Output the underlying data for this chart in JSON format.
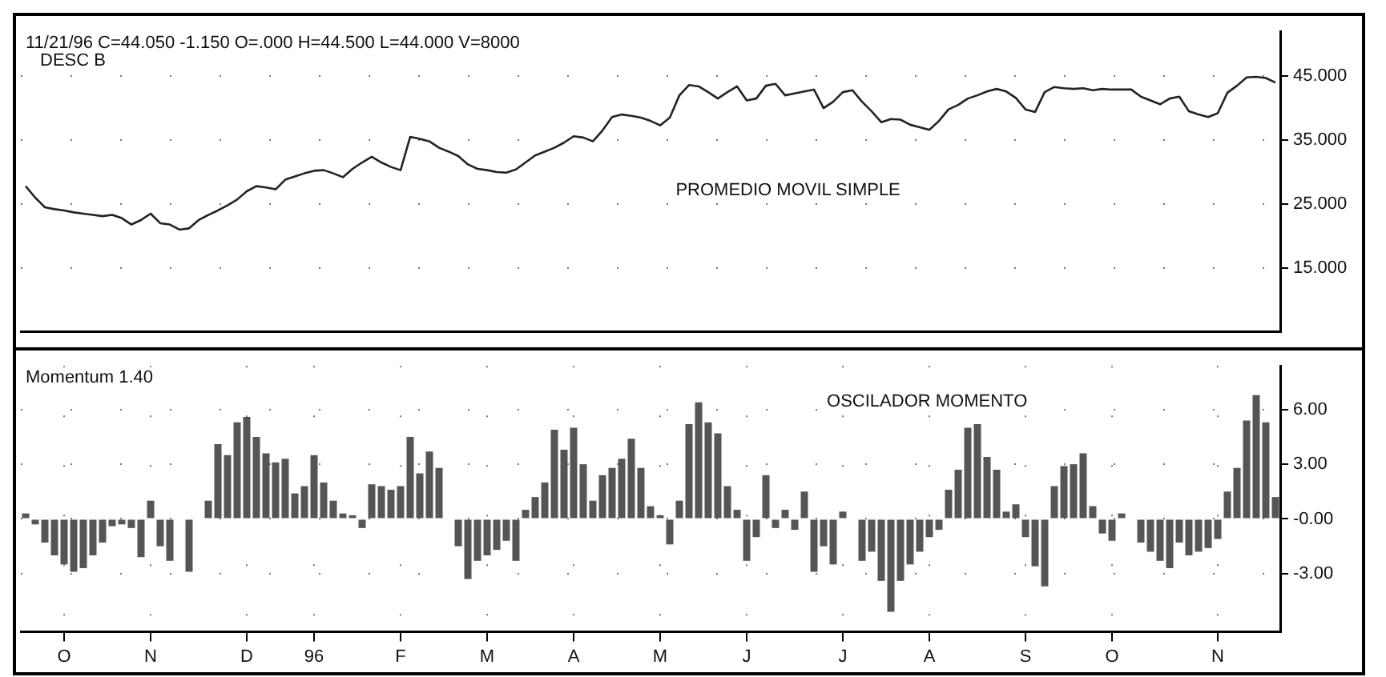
{
  "chart_data": [
    {
      "type": "line",
      "title": "11/21/96 C=44.050 -1.150 O=.000 H=44.500 L=44.000 V=8000",
      "subtitle": "DESC B",
      "values": [
        27.8,
        26,
        24.5,
        24.2,
        24,
        23.7,
        23.5,
        23.3,
        23.1,
        23.3,
        22.8,
        21.8,
        22.5,
        23.5,
        22,
        21.8,
        21,
        21.2,
        22.5,
        23.3,
        24,
        24.8,
        25.7,
        27,
        27.8,
        27.6,
        27.3,
        28.8,
        29.3,
        29.8,
        30.2,
        30.3,
        29.8,
        29.2,
        30.5,
        31.5,
        32.4,
        31.5,
        30.8,
        30.3,
        35.5,
        35.2,
        34.8,
        33.8,
        33.2,
        32.5,
        31.2,
        30.5,
        30.3,
        30,
        29.9,
        30.4,
        31.5,
        32.6,
        33.2,
        33.8,
        34.6,
        35.6,
        35.4,
        34.8,
        36.5,
        38.6,
        39,
        38.8,
        38.5,
        38,
        37.3,
        38.5,
        42,
        43.6,
        43.4,
        42.5,
        41.5,
        42.5,
        43.4,
        41.2,
        41.5,
        43.5,
        43.8,
        42,
        42.3,
        42.6,
        42.9,
        40,
        41,
        42.5,
        42.8,
        41,
        39.5,
        37.8,
        38.3,
        38.2,
        37.4,
        37,
        36.6,
        38,
        39.8,
        40.5,
        41.5,
        42,
        42.6,
        43,
        42.6,
        41.6,
        39.8,
        39.4,
        42.5,
        43.3,
        43.1,
        43,
        43.1,
        42.8,
        43,
        42.9,
        42.9,
        42.9,
        41.8,
        41.2,
        40.6,
        41.5,
        41.8,
        39.5,
        39,
        38.6,
        39.2,
        42.4,
        43.5,
        44.8,
        44.9,
        44.7,
        44
      ],
      "color": "#222222",
      "marker": "none",
      "ylim": [
        5,
        52
      ],
      "yticks": [
        {
          "value": 15,
          "label": "15.000"
        },
        {
          "value": 25,
          "label": "25.000"
        },
        {
          "value": 35,
          "label": "35.000"
        },
        {
          "value": 45,
          "label": "45.000"
        }
      ],
      "grid": true,
      "tick_labels": "y",
      "annotations": [
        "PROMEDIO MOVIL SIMPLE"
      ]
    },
    {
      "type": "bar",
      "title": "Momentum 1.40",
      "categories": [
        null,
        null,
        null,
        null,
        "O",
        null,
        null,
        null,
        null,
        null,
        null,
        null,
        null,
        "N",
        null,
        null,
        null,
        null,
        null,
        null,
        null,
        null,
        null,
        "D",
        null,
        null,
        null,
        null,
        null,
        null,
        "96",
        null,
        null,
        null,
        null,
        null,
        null,
        null,
        null,
        "F",
        null,
        null,
        null,
        null,
        null,
        null,
        null,
        null,
        "M",
        null,
        null,
        null,
        null,
        null,
        null,
        null,
        null,
        "A",
        null,
        null,
        null,
        null,
        null,
        null,
        null,
        null,
        "M",
        null,
        null,
        null,
        null,
        null,
        null,
        null,
        null,
        "J",
        null,
        null,
        null,
        null,
        null,
        null,
        null,
        null,
        null,
        "J",
        null,
        null,
        null,
        null,
        null,
        null,
        null,
        null,
        "A",
        null,
        null,
        null,
        null,
        null,
        null,
        null,
        null,
        null,
        "S",
        null,
        null,
        null,
        null,
        null,
        null,
        null,
        null,
        "O",
        null,
        null,
        null,
        null,
        null,
        null,
        null,
        null,
        null,
        null,
        "N",
        null,
        null,
        null,
        null,
        null,
        null
      ],
      "values": [
        0.3,
        -0.3,
        -1.3,
        -2,
        -2.5,
        -2.9,
        -2.7,
        -2,
        -1.3,
        -0.4,
        -0.3,
        -0.5,
        -2.1,
        1,
        -1.5,
        -2.3,
        null,
        -2.9,
        null,
        1,
        4.1,
        3.5,
        5.3,
        5.6,
        4.5,
        3.6,
        3.1,
        3.3,
        1.4,
        1.8,
        3.5,
        2,
        1,
        0.3,
        0.2,
        -0.5,
        1.9,
        1.8,
        1.6,
        1.8,
        4.5,
        2.5,
        3.7,
        2.8,
        null,
        -1.5,
        -3.3,
        -2.3,
        -2,
        -1.7,
        -1.2,
        -2.3,
        0.5,
        1.2,
        2,
        4.9,
        3.8,
        5,
        3,
        1,
        2.4,
        2.8,
        3.3,
        4.4,
        2.8,
        0.7,
        0.2,
        -1.4,
        1,
        5.2,
        6.4,
        5.3,
        4.7,
        1.8,
        0.5,
        -2.3,
        -1,
        2.4,
        -0.5,
        0.5,
        -0.6,
        1.5,
        -2.9,
        -1.5,
        -2.5,
        0.4,
        null,
        -2.3,
        -1.8,
        -3.4,
        -5.1,
        -3.4,
        -2.5,
        -1.8,
        -1,
        -0.6,
        1.6,
        2.7,
        5,
        5.2,
        3.4,
        2.7,
        0.4,
        0.8,
        -1,
        -2.6,
        -3.7,
        1.8,
        2.9,
        3,
        3.6,
        0.7,
        -0.8,
        -1.2,
        0.3,
        null,
        -1.3,
        -1.8,
        -2.3,
        -2.7,
        -1.3,
        -2,
        -1.8,
        -1.6,
        -1.1,
        1.5,
        2.8,
        5.4,
        6.8,
        5.3,
        1.2
      ],
      "color": "#555555",
      "ylim": [
        -6.2,
        8.4
      ],
      "yticks": [
        {
          "value": -3,
          "label": "-3.00"
        },
        {
          "value": 0,
          "label": "-0.00"
        },
        {
          "value": 3,
          "label": "3.00"
        },
        {
          "value": 6,
          "label": "6.00"
        }
      ],
      "grid": true,
      "annotations": [
        "OSCILADOR MOMENTO"
      ]
    }
  ]
}
